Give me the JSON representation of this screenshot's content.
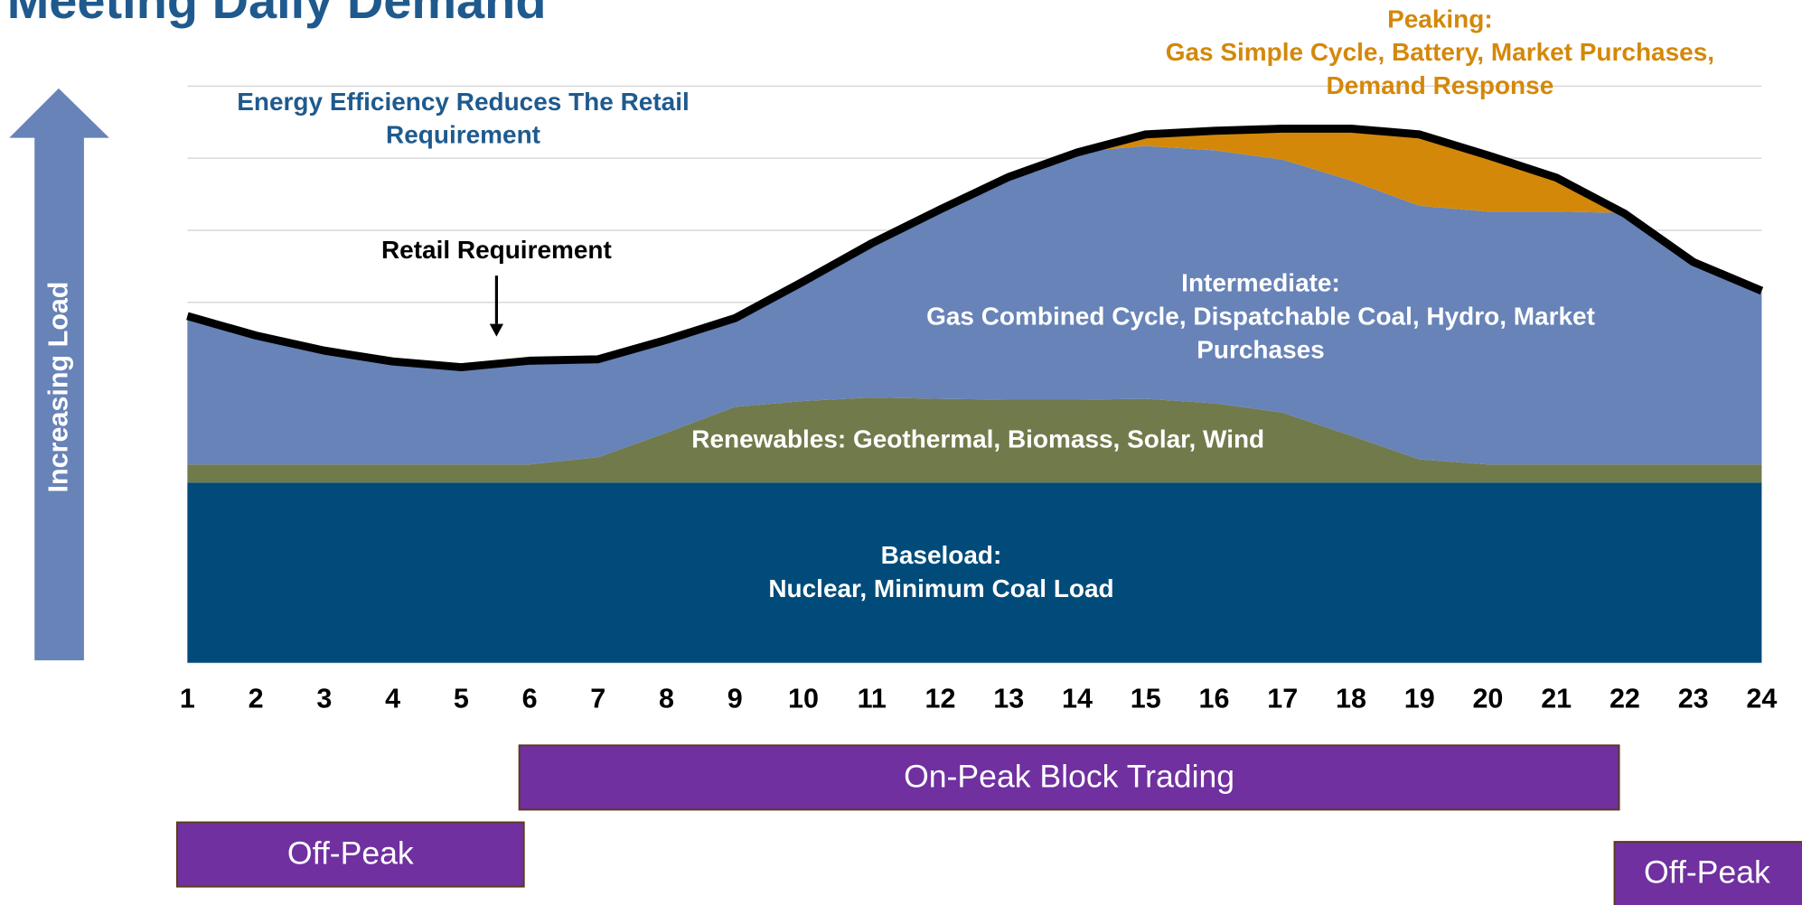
{
  "chart_data": {
    "type": "stacked-area",
    "title": "Meeting Daily Demand",
    "y_axis_label": "Increasing Load",
    "x": [
      1,
      2,
      3,
      4,
      5,
      6,
      7,
      8,
      9,
      10,
      11,
      12,
      13,
      14,
      15,
      16,
      17,
      18,
      19,
      20,
      21,
      22,
      23,
      24
    ],
    "xlim": [
      1,
      24
    ],
    "xticks": [
      1,
      2,
      3,
      4,
      5,
      6,
      7,
      8,
      9,
      10,
      11,
      12,
      13,
      14,
      15,
      16,
      17,
      18,
      19,
      20,
      21,
      22,
      23,
      24
    ],
    "ylim": [
      0,
      8
    ],
    "yticks": [
      0,
      1,
      2,
      3,
      4,
      5,
      6,
      7,
      8
    ],
    "grid": true,
    "series": [
      {
        "label": [
          "Baseload:",
          "Nuclear, Minimum Coal Load"
        ],
        "color": "#004b7a",
        "text_color": "#ffffff",
        "values": [
          2.5,
          2.5,
          2.5,
          2.5,
          2.5,
          2.5,
          2.5,
          2.5,
          2.5,
          2.5,
          2.5,
          2.5,
          2.5,
          2.5,
          2.5,
          2.5,
          2.5,
          2.5,
          2.5,
          2.5,
          2.5,
          2.5,
          2.5,
          2.5
        ]
      },
      {
        "label": [
          "Renewables: Geothermal, Biomass, Solar, Wind"
        ],
        "color": "#717a4a",
        "text_color": "#ffffff",
        "values": [
          0.25,
          0.25,
          0.25,
          0.25,
          0.25,
          0.25,
          0.35,
          0.69,
          1.05,
          1.13,
          1.18,
          1.16,
          1.15,
          1.15,
          1.16,
          1.1,
          0.97,
          0.65,
          0.32,
          0.25,
          0.25,
          0.25,
          0.25,
          0.25
        ]
      },
      {
        "label": [
          "Intermediate:",
          "Gas Combined Cycle, Dispatchable Coal, Hydro, Market",
          "Purchases"
        ],
        "color": "#6783b8",
        "text_color": "#ffffff",
        "values": [
          2.07,
          1.8,
          1.59,
          1.43,
          1.35,
          1.45,
          1.37,
          1.31,
          1.24,
          1.67,
          2.15,
          2.65,
          3.11,
          3.44,
          3.51,
          3.51,
          3.51,
          3.54,
          3.52,
          3.51,
          3.51,
          3.49,
          2.82,
          2.42
        ]
      },
      {
        "label": [
          "Peaking:",
          "Gas Simple Cycle, Battery, Market Purchases,",
          "Demand Response"
        ],
        "color": "#d4880a",
        "text_color": "#d4880a",
        "values": [
          0,
          0,
          0,
          0,
          0,
          0,
          0,
          0,
          0,
          0,
          0,
          0,
          0,
          0,
          0.18,
          0.29,
          0.45,
          0.73,
          1.0,
          0.8,
          0.48,
          0,
          0,
          0
        ]
      }
    ],
    "line": {
      "label": "Retail Requirement",
      "color": "#000000",
      "values": [
        4.81,
        4.54,
        4.33,
        4.18,
        4.1,
        4.19,
        4.21,
        4.48,
        4.78,
        5.29,
        5.82,
        6.29,
        6.74,
        7.08,
        7.33,
        7.38,
        7.41,
        7.41,
        7.33,
        7.04,
        6.73,
        6.23,
        5.56,
        5.16
      ]
    },
    "annotation": [
      "Energy Efficiency Reduces The Retail",
      "Requirement"
    ],
    "blocks": [
      {
        "label": "On-Peak Block Trading",
        "start": 6,
        "end": 22,
        "color": "#7030a0"
      },
      {
        "label": "Off-Peak",
        "start": 1,
        "end": 6,
        "color": "#7030a0"
      },
      {
        "label": "Off-Peak",
        "start": 22,
        "color": "#7030a0"
      }
    ]
  }
}
